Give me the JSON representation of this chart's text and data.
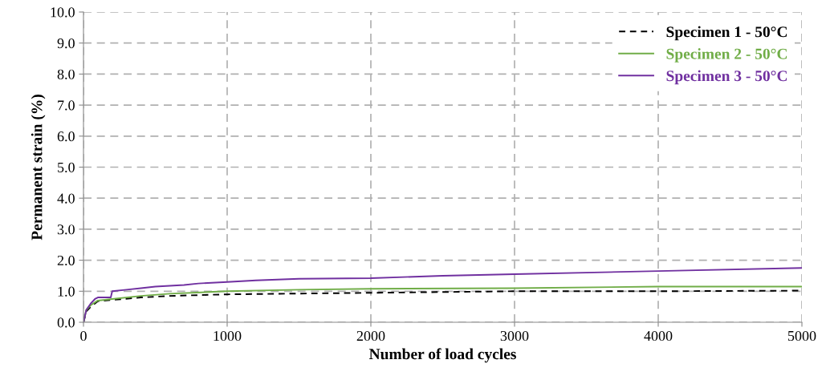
{
  "chart_data": {
    "type": "line",
    "xlabel": "Number of load cycles",
    "ylabel": "Permanent strain (%)",
    "xlim": [
      0,
      5000
    ],
    "xticks": [
      0,
      1000,
      2000,
      3000,
      4000,
      5000
    ],
    "ylim": [
      0,
      10
    ],
    "yticks": [
      {
        "value": 0,
        "label": "0.0"
      },
      {
        "value": 1,
        "label": "1.0"
      },
      {
        "value": 2,
        "label": "2.0"
      },
      {
        "value": 3,
        "label": "3.0"
      },
      {
        "value": 4,
        "label": "4.0"
      },
      {
        "value": 5,
        "label": "5.0"
      },
      {
        "value": 6,
        "label": "6.0"
      },
      {
        "value": 7,
        "label": "7.0"
      },
      {
        "value": 8,
        "label": "8.0"
      },
      {
        "value": 9,
        "label": "9.0"
      },
      {
        "value": 10,
        "label": "10.0"
      }
    ],
    "grid": true,
    "legend": "top right",
    "marker": "none",
    "series": [
      {
        "name": "Specimen 1 - 50°C",
        "color": "#000000",
        "line_style": "dashed",
        "x": [
          0,
          20,
          50,
          100,
          200,
          400,
          600,
          1000,
          2000,
          3000,
          4000,
          5000
        ],
        "values": [
          0,
          0.35,
          0.5,
          0.68,
          0.72,
          0.8,
          0.85,
          0.9,
          0.95,
          1.0,
          1.0,
          1.02
        ]
      },
      {
        "name": "Specimen 2 - 50°C",
        "color": "#70ad47",
        "line_style": "solid",
        "x": [
          0,
          20,
          50,
          100,
          200,
          400,
          600,
          1000,
          1500,
          2000,
          3000,
          4000,
          5000
        ],
        "values": [
          0,
          0.4,
          0.55,
          0.7,
          0.75,
          0.85,
          0.92,
          1.0,
          1.05,
          1.08,
          1.1,
          1.15,
          1.15
        ]
      },
      {
        "name": "Specimen 3 - 50°C",
        "color": "#7030a0",
        "line_style": "solid",
        "x": [
          0,
          20,
          50,
          80,
          100,
          190,
          200,
          300,
          400,
          500,
          700,
          800,
          1000,
          1200,
          1500,
          2000,
          2500,
          3000,
          4000,
          5000
        ],
        "values": [
          0,
          0.4,
          0.6,
          0.75,
          0.8,
          0.8,
          1.0,
          1.05,
          1.1,
          1.15,
          1.2,
          1.25,
          1.3,
          1.35,
          1.4,
          1.42,
          1.5,
          1.55,
          1.65,
          1.75
        ]
      }
    ]
  }
}
